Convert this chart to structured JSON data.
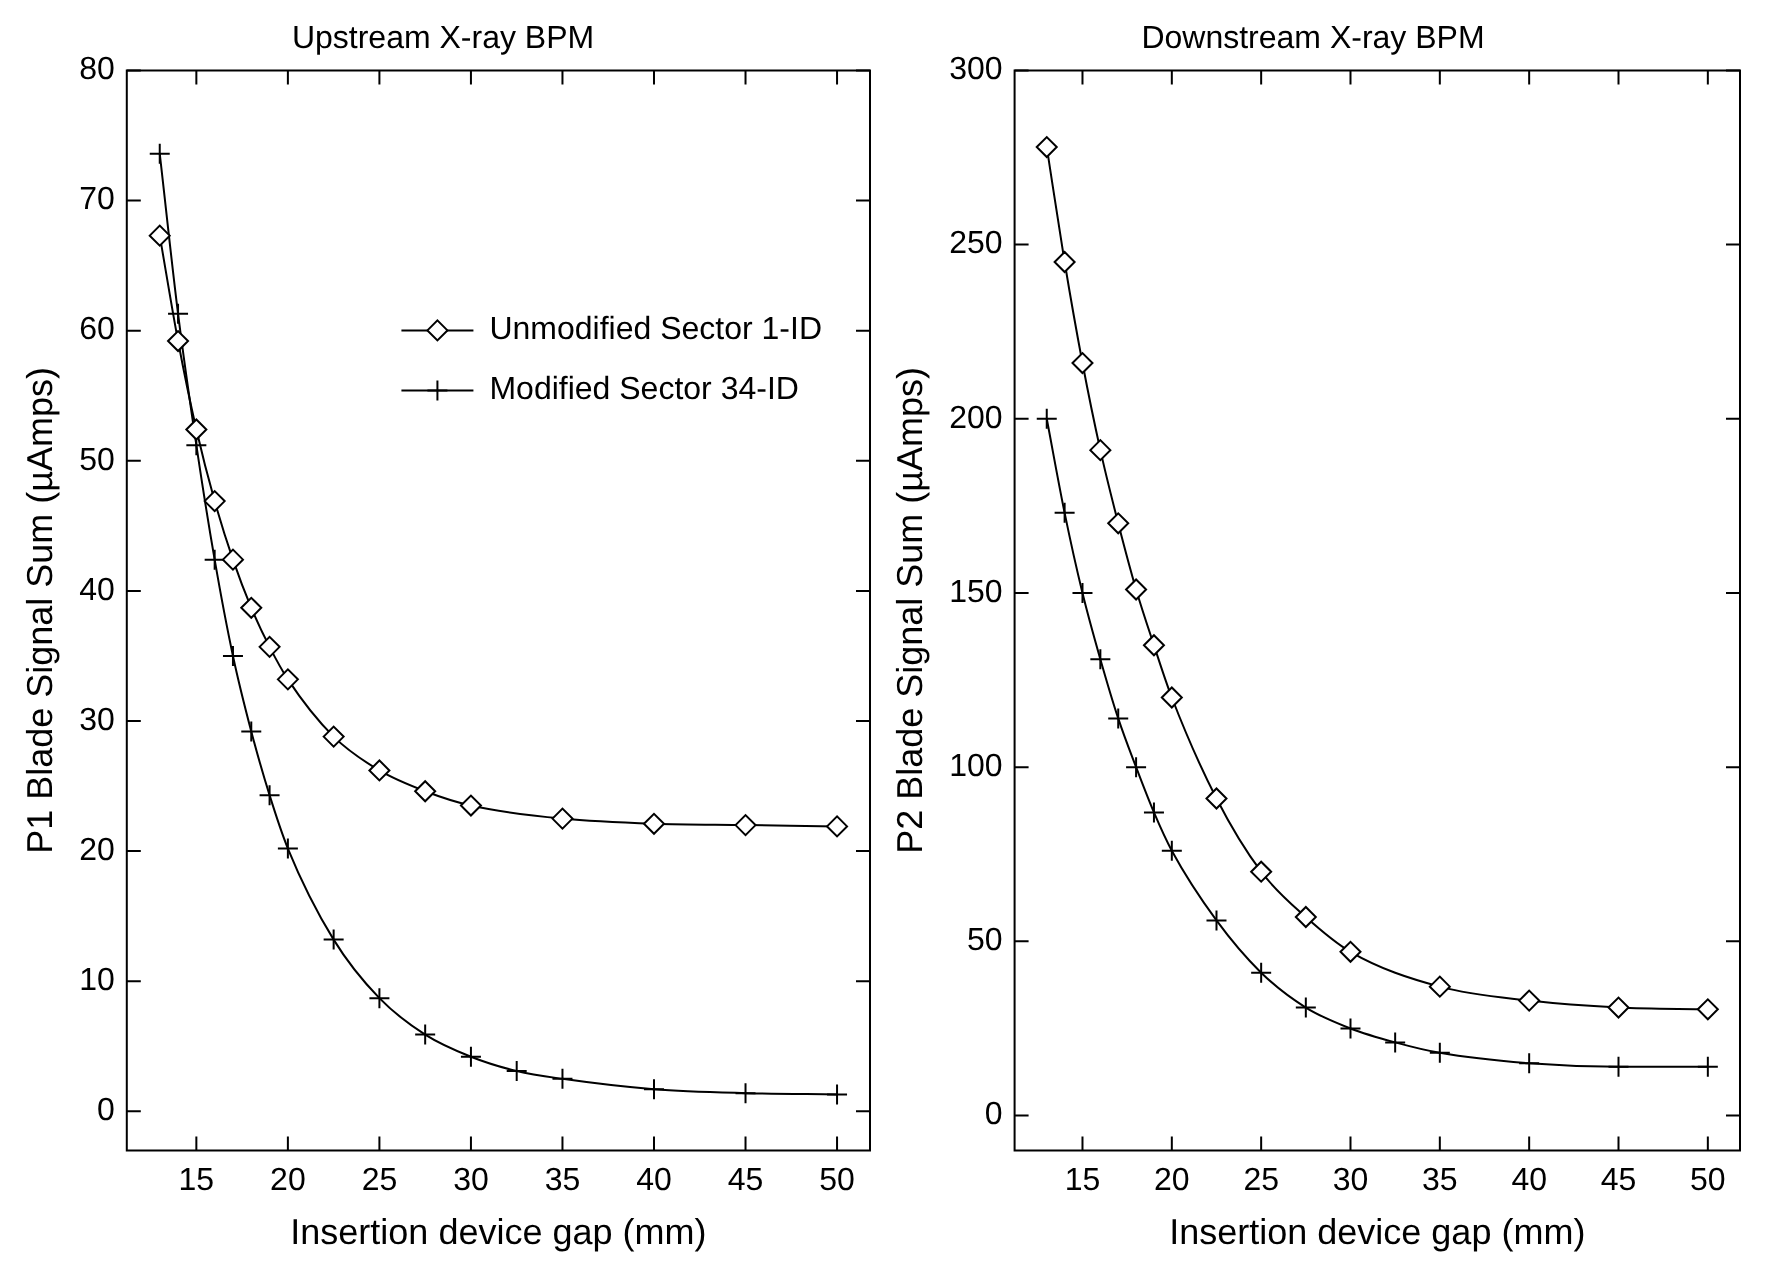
{
  "chart_data": [
    {
      "type": "line",
      "title": "Upstream X-ray BPM",
      "xlabel": "Insertion device gap (mm)",
      "ylabel": "P1 Blade Signal Sum (µAmps)",
      "xlim": [
        11.2,
        51.8
      ],
      "xticks": [
        15,
        20,
        25,
        30,
        35,
        40,
        45,
        50
      ],
      "ylim": [
        -3,
        80
      ],
      "yticks": [
        0,
        10,
        20,
        30,
        40,
        50,
        60,
        70,
        80
      ],
      "grid": false,
      "legend": "top right",
      "line_style": "solid",
      "series": [
        {
          "name": "Unmodified Sector 1-ID",
          "color": "#000000",
          "marker": "diamond",
          "x": [
            13,
            14,
            15,
            16,
            17,
            18,
            19,
            20,
            22.5,
            25,
            27.5,
            30,
            35,
            40,
            45,
            50
          ],
          "values": [
            67.3,
            59.2,
            52.4,
            46.9,
            42.4,
            38.7,
            35.7,
            33.2,
            28.8,
            26.2,
            24.6,
            23.5,
            22.5,
            22.1,
            22.0,
            21.9
          ]
        },
        {
          "name": "Modified Sector 34-ID",
          "color": "#000000",
          "marker": "cross",
          "x": [
            13,
            14,
            15,
            16,
            17,
            18,
            19,
            20,
            22.5,
            25,
            27.5,
            30,
            32.5,
            35,
            40,
            45,
            50
          ],
          "values": [
            73.6,
            61.3,
            51.2,
            42.4,
            35.0,
            29.2,
            24.3,
            20.2,
            13.2,
            8.7,
            5.9,
            4.2,
            3.1,
            2.5,
            1.7,
            1.4,
            1.3
          ]
        }
      ]
    },
    {
      "type": "line",
      "title": "Downstream X-ray BPM",
      "xlabel": "Insertion device gap (mm)",
      "ylabel": "P2 Blade Signal Sum (µAmps)",
      "xlim": [
        11.2,
        51.8
      ],
      "xticks": [
        15,
        20,
        25,
        30,
        35,
        40,
        45,
        50
      ],
      "ylim": [
        -10,
        300
      ],
      "yticks": [
        0,
        50,
        100,
        150,
        200,
        250,
        300
      ],
      "grid": false,
      "line_style": "solid",
      "series": [
        {
          "color": "#000000",
          "marker": "diamond",
          "x": [
            13,
            14,
            15,
            16,
            17,
            18,
            19,
            20,
            22.5,
            25,
            27.5,
            30,
            35,
            40,
            45,
            50
          ],
          "values": [
            278,
            245,
            216,
            191,
            170,
            151,
            135,
            120,
            91,
            70,
            57,
            47,
            37,
            33,
            31,
            30.5
          ]
        },
        {
          "color": "#000000",
          "marker": "cross",
          "x": [
            13,
            14,
            15,
            16,
            17,
            18,
            19,
            20,
            22.5,
            25,
            27.5,
            30,
            32.5,
            35,
            40,
            45,
            50
          ],
          "values": [
            200,
            173,
            150,
            131,
            114,
            100,
            87,
            76,
            56,
            41,
            31,
            25,
            21,
            18,
            15,
            14,
            14
          ]
        }
      ]
    }
  ]
}
